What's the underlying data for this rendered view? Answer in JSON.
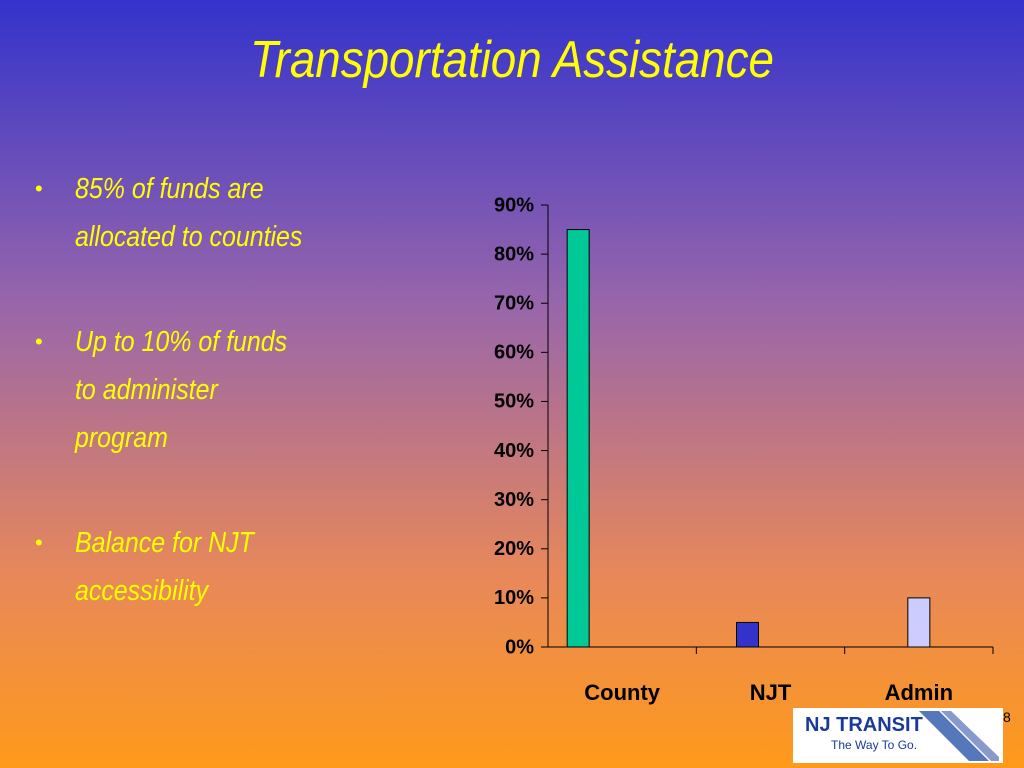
{
  "title": "Transportation Assistance",
  "bullets": [
    [
      "85% of funds are",
      "allocated to counties"
    ],
    [
      "Up to 10% of funds",
      "to administer",
      "program"
    ],
    [
      "Balance for NJT",
      "accessibility"
    ]
  ],
  "page_number": "8",
  "logo": {
    "name": "NJ TRANSIT",
    "tagline": "The Way To Go."
  },
  "chart_data": {
    "type": "bar",
    "categories": [
      "County",
      "NJT",
      "Admin"
    ],
    "values": [
      85,
      5,
      10
    ],
    "colors": [
      "#00c896",
      "#3333cc",
      "#ccccff"
    ],
    "ylim": [
      0,
      90
    ],
    "yticks": [
      {
        "value": 0,
        "label": "0%"
      },
      {
        "value": 10,
        "label": "10%"
      },
      {
        "value": 20,
        "label": "20%"
      },
      {
        "value": 30,
        "label": "30%"
      },
      {
        "value": 40,
        "label": "40%"
      },
      {
        "value": 50,
        "label": "50%"
      },
      {
        "value": 60,
        "label": "60%"
      },
      {
        "value": 70,
        "label": "70%"
      },
      {
        "value": 80,
        "label": "80%"
      },
      {
        "value": 90,
        "label": "90%"
      }
    ],
    "grid": false
  }
}
